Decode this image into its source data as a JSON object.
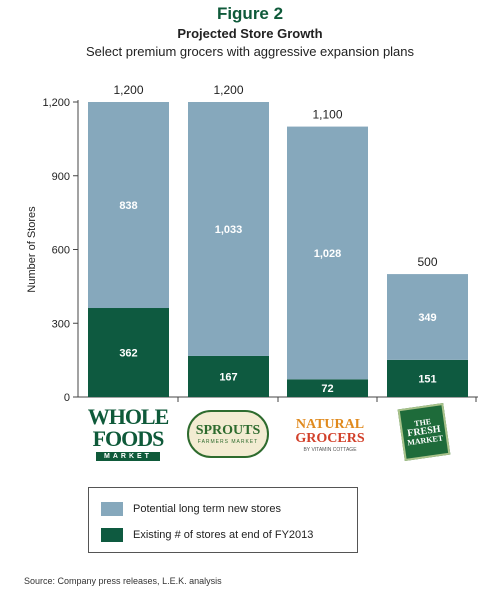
{
  "figure": {
    "label": "Figure 2",
    "title": "Projected Store Growth",
    "subtitle": "Select premium grocers with aggressive expansion plans",
    "source": "Source: Company press releases, L.E.K. analysis"
  },
  "logos": {
    "whole_foods": {
      "line1": "WHOLE",
      "line2": "FOODS",
      "line3": "MARKET"
    },
    "sprouts": {
      "line1": "SPROUTS",
      "line2": "FARMERS MARKET"
    },
    "natural_grocers": {
      "line1": "NATURAL",
      "line2": "GROCERS",
      "line3": "BY VITAMIN COTTAGE"
    },
    "fresh_market": {
      "line1": "THE",
      "line2": "FRESH",
      "line3": "MARKET"
    }
  },
  "colors": {
    "potential": "#86a8bc",
    "existing": "#0e5a40",
    "title": "#0f5a3a"
  },
  "legend": {
    "potential": "Potential long term new stores",
    "existing": "Existing # of stores at end of FY2013"
  },
  "chart_data": {
    "type": "bar",
    "stacked": true,
    "categories": [
      "Whole Foods Market",
      "Sprouts Farmers Market",
      "Natural Grocers by Vitamin Cottage",
      "The Fresh Market"
    ],
    "series": [
      {
        "name": "Existing # of stores at end of FY2013",
        "values": [
          362,
          167,
          72,
          151
        ]
      },
      {
        "name": "Potential long term new stores",
        "values": [
          838,
          1033,
          1028,
          349
        ]
      }
    ],
    "totals": [
      1200,
      1200,
      1100,
      500
    ],
    "segment_labels": {
      "existing": [
        "362",
        "167",
        "72",
        "151"
      ],
      "potential": [
        "838",
        "1,033",
        "1,028",
        "349"
      ],
      "totals": [
        "1,200",
        "1,200",
        "1,100",
        "500"
      ]
    },
    "ylabel": "Number of Stores",
    "ylim": [
      0,
      1200
    ],
    "yticks": [
      0,
      300,
      600,
      900,
      1200
    ],
    "ytick_labels": [
      "0",
      "300",
      "600",
      "900",
      "1,200"
    ],
    "grid": false,
    "legend_position": "bottom"
  }
}
